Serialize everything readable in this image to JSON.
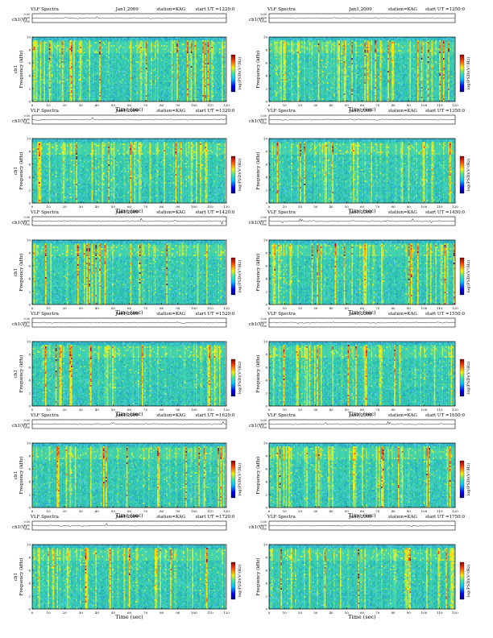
{
  "page": {
    "title": "VLF Spectra"
  },
  "chart_data": [
    {
      "type": "heatmap",
      "title": "VLF Spectra",
      "date": "Jan1,2009",
      "station": "station=KAG",
      "start": "start UT =1220:0",
      "top_label": "ch1(V)",
      "top_ticks": [
        "0.00",
        "0.00",
        "0.00"
      ],
      "ylabel": "Frequency (kHz)",
      "ylabel_extra": "ch1",
      "xlabel": "Time (sec)",
      "xticks": [
        "0",
        "10",
        "20",
        "30",
        "40",
        "50",
        "60",
        "70",
        "80",
        "90",
        "100",
        "110",
        "120"
      ],
      "xlim": [
        0,
        120
      ],
      "yticks": [
        "0",
        "2",
        "4",
        "6",
        "8",
        "10"
      ],
      "ylim": [
        0,
        10
      ],
      "colorbar_label": "log(PSD)(V²/Hz)",
      "colormap": "jet"
    },
    {
      "type": "heatmap",
      "title": "VLF Spectra",
      "date": "Jan1,2009",
      "station": "station=KAG",
      "start": "start UT =1250:0",
      "top_label": "ch1(V)",
      "top_ticks": [
        "0.00",
        "0.00",
        "0.00"
      ],
      "ylabel": "Frequency (kHz)",
      "ylabel_extra": "",
      "xlabel": "Time (sec)",
      "xticks": [
        "0",
        "10",
        "20",
        "30",
        "40",
        "50",
        "60",
        "70",
        "80",
        "90",
        "100",
        "110",
        "120"
      ],
      "xlim": [
        0,
        120
      ],
      "yticks": [
        "0",
        "2",
        "4",
        "6",
        "8",
        "10"
      ],
      "ylim": [
        0,
        10
      ],
      "colorbar_label": "log(PSD)(V²/Hz)",
      "colormap": "jet"
    },
    {
      "type": "heatmap",
      "title": "VLF Spectra",
      "date": "Jan1,2009",
      "station": "station=KAG",
      "start": "start UT =1320:0",
      "top_label": "ch1(V)",
      "top_ticks": [
        "0.00",
        "0.00",
        "0.00"
      ],
      "ylabel": "Frequency (kHz)",
      "ylabel_extra": "ch1",
      "xlabel": "Time (sec)",
      "xticks": [
        "0",
        "10",
        "20",
        "30",
        "40",
        "50",
        "60",
        "70",
        "80",
        "90",
        "100",
        "110",
        "120"
      ],
      "xlim": [
        0,
        120
      ],
      "yticks": [
        "0",
        "2",
        "4",
        "6",
        "8",
        "10"
      ],
      "ylim": [
        0,
        10
      ],
      "colorbar_label": "log(PSD)(V²/Hz)",
      "colormap": "jet"
    },
    {
      "type": "heatmap",
      "title": "VLF Spectra",
      "date": "Jan1,2009",
      "station": "station=KAG",
      "start": "start UT =1350:0",
      "top_label": "ch1(V)",
      "top_ticks": [
        "0.00",
        "0.00",
        "0.00"
      ],
      "ylabel": "Frequency (kHz)",
      "ylabel_extra": "",
      "xlabel": "Time (sec)",
      "xticks": [
        "0",
        "10",
        "20",
        "30",
        "40",
        "50",
        "60",
        "70",
        "80",
        "90",
        "100",
        "110",
        "120"
      ],
      "xlim": [
        0,
        120
      ],
      "yticks": [
        "0",
        "2",
        "4",
        "6",
        "8",
        "10"
      ],
      "ylim": [
        0,
        10
      ],
      "colorbar_label": "log(PSD)(V²/Hz)",
      "colormap": "jet"
    },
    {
      "type": "heatmap",
      "title": "VLF Spectra",
      "date": "Jan1,2009",
      "station": "station=KAG",
      "start": "start UT =1420:0",
      "top_label": "ch1(V)",
      "top_ticks": [
        "0.00",
        "0.00",
        "0.00"
      ],
      "ylabel": "Frequency (kHz)",
      "ylabel_extra": "ch1",
      "xlabel": "Time (sec)",
      "xticks": [
        "0",
        "10",
        "20",
        "30",
        "40",
        "50",
        "60",
        "70",
        "80",
        "90",
        "100",
        "110",
        "120"
      ],
      "xlim": [
        0,
        120
      ],
      "yticks": [
        "0",
        "2",
        "4",
        "6",
        "8",
        "10"
      ],
      "ylim": [
        0,
        10
      ],
      "colorbar_label": "log(PSD)(V²/Hz)",
      "colormap": "jet"
    },
    {
      "type": "heatmap",
      "title": "VLF Spectra",
      "date": "Jan1,2009",
      "station": "station=KAG",
      "start": "start UT =1450:0",
      "top_label": "ch1(V)",
      "top_ticks": [
        "0.00",
        "0.00",
        "0.00"
      ],
      "ylabel": "Frequency (kHz)",
      "ylabel_extra": "",
      "xlabel": "Time (sec)",
      "xticks": [
        "0",
        "10",
        "20",
        "30",
        "40",
        "50",
        "60",
        "70",
        "80",
        "90",
        "100",
        "110",
        "120"
      ],
      "xlim": [
        0,
        120
      ],
      "yticks": [
        "0",
        "2",
        "4",
        "6",
        "8",
        "10"
      ],
      "ylim": [
        0,
        10
      ],
      "colorbar_label": "log(PSD)(V²/Hz)",
      "colormap": "jet"
    },
    {
      "type": "heatmap",
      "title": "VLF Spectra",
      "date": "Jan1,2009",
      "station": "station=KAG",
      "start": "start UT =1520:0",
      "top_label": "ch1(V)",
      "top_ticks": [
        "0.00",
        "0.00",
        "0.00"
      ],
      "ylabel": "Frequency (kHz)",
      "ylabel_extra": "ch1",
      "xlabel": "Time (sec)",
      "xticks": [
        "0",
        "10",
        "20",
        "30",
        "40",
        "50",
        "60",
        "70",
        "80",
        "90",
        "100",
        "110",
        "120"
      ],
      "xlim": [
        0,
        120
      ],
      "yticks": [
        "0",
        "2",
        "4",
        "6",
        "8",
        "10"
      ],
      "ylim": [
        0,
        10
      ],
      "colorbar_label": "log(PSD)(V²/Hz)",
      "colormap": "jet"
    },
    {
      "type": "heatmap",
      "title": "VLF Spectra",
      "date": "Jan1,2009",
      "station": "station=KAG",
      "start": "start UT =1550:0",
      "top_label": "ch1(V)",
      "top_ticks": [
        "0.00",
        "0.00",
        "0.00"
      ],
      "ylabel": "Frequency (kHz)",
      "ylabel_extra": "",
      "xlabel": "Time (sec)",
      "xticks": [
        "0",
        "10",
        "20",
        "30",
        "40",
        "50",
        "60",
        "70",
        "80",
        "90",
        "100",
        "110",
        "120"
      ],
      "xlim": [
        0,
        120
      ],
      "yticks": [
        "0",
        "2",
        "4",
        "6",
        "8",
        "10"
      ],
      "ylim": [
        0,
        10
      ],
      "colorbar_label": "log(PSD)(V²/Hz)",
      "colormap": "jet"
    },
    {
      "type": "heatmap",
      "title": "VLF Spectra",
      "date": "Jan1,2009",
      "station": "station=KAG",
      "start": "start UT =1620:0",
      "top_label": "ch1(V)",
      "top_ticks": [
        "0.00",
        "0.00",
        "0.00"
      ],
      "ylabel": "Frequency (kHz)",
      "ylabel_extra": "ch1",
      "xlabel": "Time (sec)",
      "xticks": [
        "0",
        "10",
        "20",
        "30",
        "40",
        "50",
        "60",
        "70",
        "80",
        "90",
        "100",
        "110",
        "120"
      ],
      "xlim": [
        0,
        120
      ],
      "yticks": [
        "0",
        "2",
        "4",
        "6",
        "8",
        "10"
      ],
      "ylim": [
        0,
        10
      ],
      "colorbar_label": "log(PSD)(V²/Hz)",
      "colormap": "jet"
    },
    {
      "type": "heatmap",
      "title": "VLF Spectra",
      "date": "Jan1,2009",
      "station": "station=KAG",
      "start": "start UT =1650:0",
      "top_label": "ch1(V)",
      "top_ticks": [
        "0.00",
        "0.00",
        "0.00"
      ],
      "ylabel": "Frequency (kHz)",
      "ylabel_extra": "",
      "xlabel": "Time (sec)",
      "xticks": [
        "0",
        "10",
        "20",
        "30",
        "40",
        "50",
        "60",
        "70",
        "80",
        "90",
        "100",
        "110",
        "120"
      ],
      "xlim": [
        0,
        120
      ],
      "yticks": [
        "0",
        "2",
        "4",
        "6",
        "8",
        "10"
      ],
      "ylim": [
        0,
        10
      ],
      "colorbar_label": "log(PSD)(V²/Hz)",
      "colormap": "jet"
    },
    {
      "type": "heatmap",
      "title": "VLF Spectra",
      "date": "Jan1,2009",
      "station": "station=KAG",
      "start": "start UT =1720:0",
      "top_label": "ch1(V)",
      "top_ticks": [
        "0.00",
        "0.00",
        "0.00"
      ],
      "ylabel": "Frequency (kHz)",
      "ylabel_extra": "ch1",
      "xlabel": "Time (sec)",
      "xticks": [
        "0",
        "10",
        "20",
        "30",
        "40",
        "50",
        "60",
        "70",
        "80",
        "90",
        "100",
        "110",
        "120"
      ],
      "xlim": [
        0,
        120
      ],
      "yticks": [
        "0",
        "2",
        "4",
        "6",
        "8",
        "10"
      ],
      "ylim": [
        0,
        10
      ],
      "colorbar_label": "log(PSD)(V²/Hz)",
      "colormap": "jet"
    },
    {
      "type": "heatmap",
      "title": "VLF Spectra",
      "date": "Jan1,2009",
      "station": "station=KAG",
      "start": "start UT =1750:0",
      "top_label": "ch1(V)",
      "top_ticks": [
        "0.00",
        "0.00",
        "0.00"
      ],
      "ylabel": "Frequency (kHz)",
      "ylabel_extra": "",
      "xlabel": "Time (sec)",
      "xticks": [
        "0",
        "10",
        "20",
        "30",
        "40",
        "50",
        "60",
        "70",
        "80",
        "90",
        "100",
        "110",
        "120"
      ],
      "xlim": [
        0,
        120
      ],
      "yticks": [
        "0",
        "2",
        "4",
        "6",
        "8",
        "10"
      ],
      "ylim": [
        0,
        10
      ],
      "colorbar_label": "log(PSD)(V²/Hz)",
      "colormap": "jet"
    }
  ],
  "colors": {
    "spectrum_base": "#2ec4a8",
    "background": "#ffffff",
    "axis": "#000000"
  }
}
